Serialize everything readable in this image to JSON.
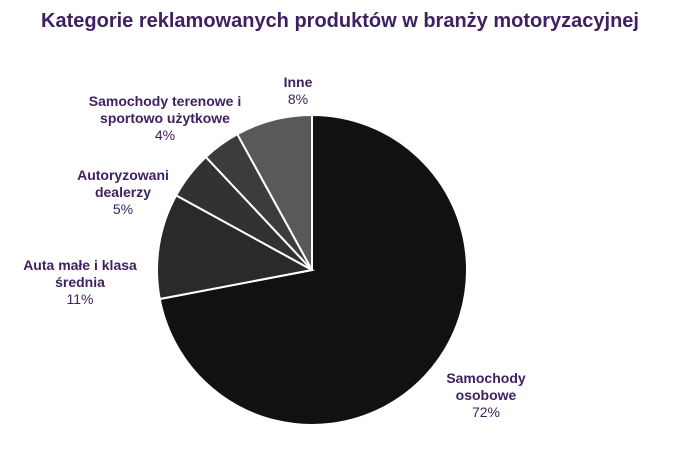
{
  "chart_data": {
    "type": "pie",
    "title": "Kategorie reklamowanych produktów w branży motoryzacyjnej",
    "categories": [
      "Samochody osobowe",
      "Auta małe i klasa średnia",
      "Autoryzowani dealerzy",
      "Samochody terenowe i sportowo użytkowe",
      "Inne"
    ],
    "values": [
      72,
      11,
      5,
      4,
      8
    ],
    "value_labels": [
      "72%",
      "11%",
      "5%",
      "4%",
      "8%"
    ],
    "colors": [
      "#121012",
      "#2b2a2b",
      "#333233",
      "#3d3c3d",
      "#5a595a"
    ]
  }
}
